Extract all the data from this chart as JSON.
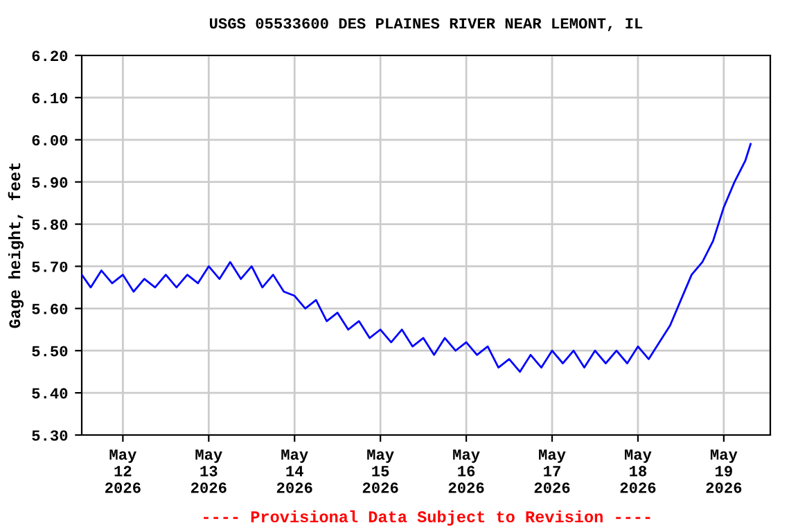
{
  "chart_data": {
    "type": "line",
    "title": "USGS 05533600 DES PLAINES RIVER NEAR LEMONT, IL",
    "ylabel": "Gage height, feet",
    "annotations": [
      "---- Provisional Data Subject to Revision ----"
    ],
    "x": [
      "2026-05-11T12:30",
      "2026-05-11T15:00",
      "2026-05-11T18:00",
      "2026-05-11T21:00",
      "2026-05-12T00:00",
      "2026-05-12T03:00",
      "2026-05-12T06:00",
      "2026-05-12T09:00",
      "2026-05-12T12:00",
      "2026-05-12T15:00",
      "2026-05-12T18:00",
      "2026-05-12T21:00",
      "2026-05-13T00:00",
      "2026-05-13T03:00",
      "2026-05-13T06:00",
      "2026-05-13T09:00",
      "2026-05-13T12:00",
      "2026-05-13T15:00",
      "2026-05-13T18:00",
      "2026-05-13T21:00",
      "2026-05-14T00:00",
      "2026-05-14T03:00",
      "2026-05-14T06:00",
      "2026-05-14T09:00",
      "2026-05-14T12:00",
      "2026-05-14T15:00",
      "2026-05-14T18:00",
      "2026-05-14T21:00",
      "2026-05-15T00:00",
      "2026-05-15T03:00",
      "2026-05-15T06:00",
      "2026-05-15T09:00",
      "2026-05-15T12:00",
      "2026-05-15T15:00",
      "2026-05-15T18:00",
      "2026-05-15T21:00",
      "2026-05-16T00:00",
      "2026-05-16T03:00",
      "2026-05-16T06:00",
      "2026-05-16T09:00",
      "2026-05-16T12:00",
      "2026-05-16T15:00",
      "2026-05-16T18:00",
      "2026-05-16T21:00",
      "2026-05-17T00:00",
      "2026-05-17T03:00",
      "2026-05-17T06:00",
      "2026-05-17T09:00",
      "2026-05-17T12:00",
      "2026-05-17T15:00",
      "2026-05-17T18:00",
      "2026-05-17T21:00",
      "2026-05-18T00:00",
      "2026-05-18T03:00",
      "2026-05-18T06:00",
      "2026-05-18T09:00",
      "2026-05-18T12:00",
      "2026-05-18T15:00",
      "2026-05-18T18:00",
      "2026-05-18T21:00",
      "2026-05-19T00:00",
      "2026-05-19T03:00",
      "2026-05-19T06:00",
      "2026-05-19T07:30"
    ],
    "series": [
      {
        "color": "#0000ff",
        "values": [
          5.68,
          5.65,
          5.69,
          5.66,
          5.68,
          5.64,
          5.67,
          5.65,
          5.68,
          5.65,
          5.68,
          5.66,
          5.7,
          5.67,
          5.71,
          5.67,
          5.7,
          5.65,
          5.68,
          5.64,
          5.63,
          5.6,
          5.62,
          5.57,
          5.59,
          5.55,
          5.57,
          5.53,
          5.55,
          5.52,
          5.55,
          5.51,
          5.53,
          5.49,
          5.53,
          5.5,
          5.52,
          5.49,
          5.51,
          5.46,
          5.48,
          5.45,
          5.49,
          5.46,
          5.5,
          5.47,
          5.5,
          5.46,
          5.5,
          5.47,
          5.5,
          5.47,
          5.51,
          5.48,
          5.52,
          5.56,
          5.62,
          5.68,
          5.71,
          5.76,
          5.84,
          5.9,
          5.95,
          5.99
        ]
      }
    ],
    "xlim": [
      "2026-05-11T12:30",
      "2026-05-19T13:00"
    ],
    "xticks": [
      {
        "value": "2026-05-12",
        "label": "May\n12\n2026"
      },
      {
        "value": "2026-05-13",
        "label": "May\n13\n2026"
      },
      {
        "value": "2026-05-14",
        "label": "May\n14\n2026"
      },
      {
        "value": "2026-05-15",
        "label": "May\n15\n2026"
      },
      {
        "value": "2026-05-16",
        "label": "May\n16\n2026"
      },
      {
        "value": "2026-05-17",
        "label": "May\n17\n2026"
      },
      {
        "value": "2026-05-18",
        "label": "May\n18\n2026"
      },
      {
        "value": "2026-05-19",
        "label": "May\n19\n2026"
      }
    ],
    "ylim": [
      5.3,
      6.2
    ],
    "yticks": [
      {
        "value": 5.3,
        "label": "5.30"
      },
      {
        "value": 5.4,
        "label": "5.40"
      },
      {
        "value": 5.5,
        "label": "5.50"
      },
      {
        "value": 5.6,
        "label": "5.60"
      },
      {
        "value": 5.7,
        "label": "5.70"
      },
      {
        "value": 5.8,
        "label": "5.80"
      },
      {
        "value": 5.9,
        "label": "5.90"
      },
      {
        "value": 6.0,
        "label": "6.00"
      },
      {
        "value": 6.1,
        "label": "6.10"
      },
      {
        "value": 6.2,
        "label": "6.20"
      }
    ],
    "grid": true,
    "line_style": "solid",
    "marker": "none"
  }
}
